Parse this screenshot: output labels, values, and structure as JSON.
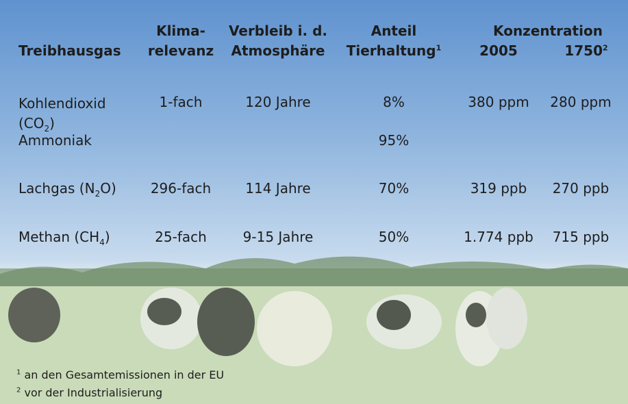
{
  "header": {
    "gas": "Treibhausgas",
    "climate": [
      "Klima-",
      "relevanz"
    ],
    "residence": [
      "Verbleib i. d.",
      "Atmosphäre"
    ],
    "share": [
      "Anteil",
      "Tierhaltung"
    ],
    "share_note": "1",
    "concentration": "Konzentration",
    "year_a": "2005",
    "year_b": "1750",
    "year_b_note": "2"
  },
  "rows": [
    {
      "gas": {
        "pre": "Kohlendioxid (CO",
        "sub": "2",
        "post": ")"
      },
      "climate": "1-fach",
      "residence": "120 Jahre",
      "share": "8%",
      "c2005": "380 ppm",
      "c1750": "280 ppm"
    },
    {
      "gas": {
        "pre": "Ammoniak"
      },
      "share": "95%"
    },
    {
      "gas": {
        "pre": "Lachgas (N",
        "sub": "2",
        "post": "O)"
      },
      "climate": "296-fach",
      "residence": "114 Jahre",
      "share": "70%",
      "c2005": "319 ppb",
      "c1750": "270 ppb"
    },
    {
      "gas": {
        "pre": "Methan (CH",
        "sub": "4",
        "post": ")"
      },
      "climate": "25-fach",
      "residence": "9-15 Jahre",
      "share": "50%",
      "c2005": "1.774 ppb",
      "c1750": "715 ppb"
    }
  ],
  "footnotes": [
    {
      "mark": "1",
      "text": "an den Gesamtemissionen in der EU"
    },
    {
      "mark": "2",
      "text": "vor der Industrialisierung"
    }
  ]
}
